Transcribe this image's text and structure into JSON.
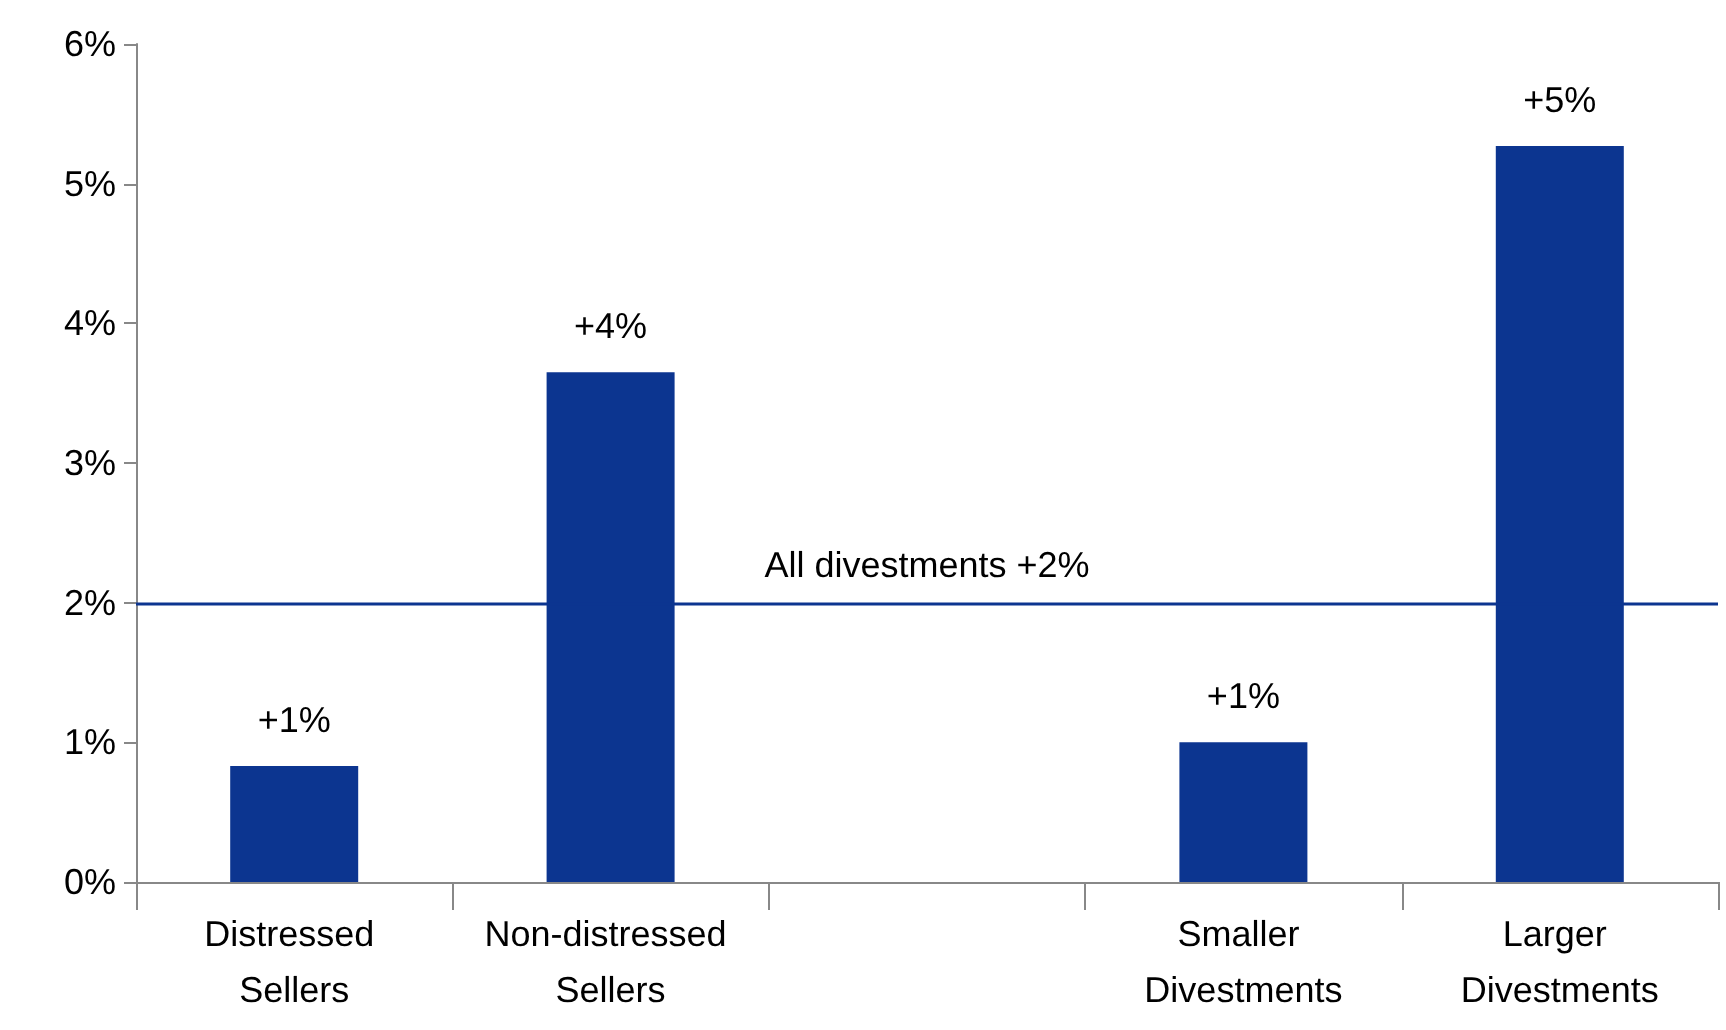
{
  "chart_data": {
    "type": "bar",
    "categories": [
      "Distressed Sellers",
      "Non-distressed Sellers",
      null,
      "Smaller Divestments",
      "Larger Divestments"
    ],
    "values": [
      0.83,
      3.65,
      null,
      1.0,
      5.27
    ],
    "color": "#0c3590",
    "value_labels": [
      "+1%",
      "+4%",
      null,
      "+1%",
      "+5%"
    ],
    "ylim": [
      0,
      6
    ],
    "yticks": [
      {
        "value": 0,
        "label": "0%"
      },
      {
        "value": 1,
        "label": "1%"
      },
      {
        "value": 2,
        "label": "2%"
      },
      {
        "value": 3,
        "label": "3%"
      },
      {
        "value": 4,
        "label": "4%"
      },
      {
        "value": 5,
        "label": "5%"
      },
      {
        "value": 6,
        "label": "6%"
      }
    ],
    "ref_lines": [
      {
        "axis": "y",
        "value": 2,
        "label": "All divestments +2%",
        "color": "#0c3590",
        "line_style": "solid"
      }
    ],
    "grid": false
  }
}
